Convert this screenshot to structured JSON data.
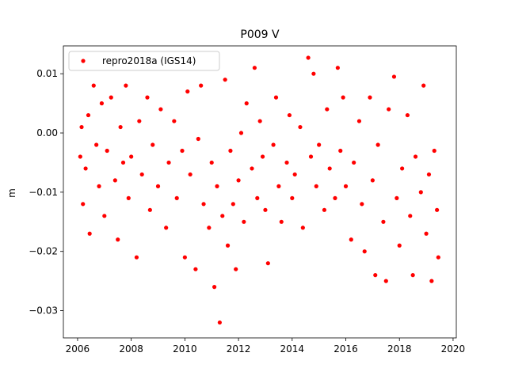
{
  "chart_data": {
    "type": "scatter",
    "title": "P009 V",
    "y_label": "m",
    "x": [
      2006.1,
      2006.15,
      2006.2,
      2006.3,
      2006.4,
      2006.45,
      2006.6,
      2006.7,
      2006.8,
      2006.9,
      2007.0,
      2007.1,
      2007.25,
      2007.4,
      2007.5,
      2007.6,
      2007.7,
      2007.8,
      2007.9,
      2008.0,
      2008.2,
      2008.3,
      2008.4,
      2008.6,
      2008.7,
      2008.8,
      2009.0,
      2009.1,
      2009.3,
      2009.4,
      2009.6,
      2009.7,
      2009.9,
      2010.0,
      2010.1,
      2010.2,
      2010.4,
      2010.5,
      2010.6,
      2010.7,
      2010.9,
      2011.0,
      2011.1,
      2011.2,
      2011.3,
      2011.4,
      2011.5,
      2011.6,
      2011.7,
      2011.8,
      2011.9,
      2012.0,
      2012.1,
      2012.2,
      2012.3,
      2012.5,
      2012.6,
      2012.7,
      2012.8,
      2012.9,
      2013.0,
      2013.1,
      2013.3,
      2013.4,
      2013.5,
      2013.6,
      2013.8,
      2013.9,
      2014.0,
      2014.1,
      2014.3,
      2014.4,
      2014.6,
      2014.7,
      2014.8,
      2014.9,
      2015.0,
      2015.2,
      2015.3,
      2015.4,
      2015.6,
      2015.7,
      2015.8,
      2015.9,
      2016.0,
      2016.2,
      2016.3,
      2016.5,
      2016.6,
      2016.7,
      2016.9,
      2017.0,
      2017.1,
      2017.2,
      2017.4,
      2017.5,
      2017.6,
      2017.8,
      2017.9,
      2018.0,
      2018.1,
      2018.3,
      2018.4,
      2018.5,
      2018.6,
      2018.8,
      2018.9,
      2019.0,
      2019.1,
      2019.2,
      2019.3,
      2019.4,
      2019.45
    ],
    "series": [
      {
        "name": "repro2018a (IGS14)",
        "color": "#ff0000",
        "values": [
          -0.004,
          0.001,
          -0.012,
          -0.006,
          0.003,
          -0.017,
          0.008,
          -0.002,
          -0.009,
          0.005,
          -0.014,
          -0.003,
          0.006,
          -0.008,
          -0.018,
          0.001,
          -0.005,
          0.008,
          -0.011,
          -0.004,
          -0.021,
          0.002,
          -0.007,
          0.006,
          -0.013,
          -0.002,
          -0.009,
          0.004,
          -0.016,
          -0.005,
          0.002,
          -0.011,
          -0.003,
          -0.021,
          0.007,
          -0.007,
          -0.023,
          -0.001,
          0.008,
          -0.012,
          -0.016,
          -0.005,
          -0.026,
          -0.009,
          -0.032,
          -0.014,
          0.009,
          -0.019,
          -0.003,
          -0.012,
          -0.023,
          -0.008,
          0.0,
          -0.015,
          0.005,
          -0.006,
          0.011,
          -0.011,
          0.002,
          -0.004,
          -0.013,
          -0.022,
          -0.002,
          0.006,
          -0.009,
          -0.015,
          -0.005,
          0.003,
          -0.011,
          -0.007,
          0.001,
          -0.016,
          0.0127,
          -0.004,
          0.01,
          -0.009,
          -0.002,
          -0.013,
          0.004,
          -0.006,
          -0.011,
          0.011,
          -0.003,
          0.006,
          -0.009,
          -0.018,
          -0.005,
          0.002,
          -0.012,
          -0.02,
          0.006,
          -0.008,
          -0.024,
          -0.002,
          -0.015,
          -0.025,
          0.004,
          0.0095,
          -0.011,
          -0.019,
          -0.006,
          0.003,
          -0.014,
          -0.024,
          -0.004,
          -0.01,
          0.008,
          -0.017,
          -0.007,
          -0.025,
          -0.003,
          -0.013,
          -0.021
        ]
      }
    ],
    "xlim": [
      2005.47,
      2020.12
    ],
    "ylim": [
      -0.0346,
      0.0147
    ],
    "xticks": [
      2006,
      2008,
      2010,
      2012,
      2014,
      2016,
      2018,
      2020
    ],
    "yticks": [
      0.01,
      {
        "value": 0,
        "label": "0.00"
      },
      {
        "value": -0.01,
        "label": "−0.01"
      },
      {
        "value": -0.02,
        "label": "−0.02"
      },
      {
        "value": -0.03,
        "label": "−0.03"
      }
    ],
    "legend": "upper left"
  }
}
